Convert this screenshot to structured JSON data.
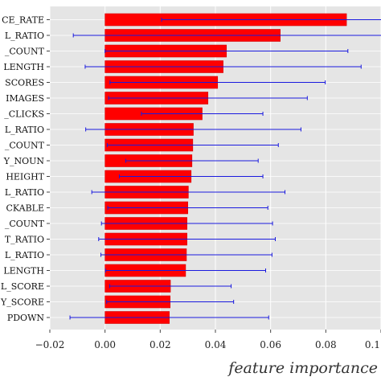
{
  "chart_data": {
    "type": "bar",
    "orientation": "horizontal",
    "categories": [
      "CE_RATE",
      "L_RATIO",
      "_COUNT",
      "LENGTH",
      "SCORES",
      "IMAGES",
      "_CLICKS",
      "L_RATIO",
      "_COUNT",
      "Y_NOUN",
      "HEIGHT",
      "L_RATIO",
      "CKABLE",
      "_COUNT",
      "T_RATIO",
      "L_RATIO",
      "LENGTH",
      "L_SCORE",
      "Y_SCORE",
      "PDOWN"
    ],
    "values": [
      0.0875,
      0.0635,
      0.044,
      0.0428,
      0.0408,
      0.0373,
      0.0352,
      0.032,
      0.0318,
      0.0315,
      0.0312,
      0.0302,
      0.03,
      0.0297,
      0.0297,
      0.0295,
      0.0292,
      0.0237,
      0.0236,
      0.0233
    ],
    "errors": [
      0.067,
      0.075,
      0.044,
      0.05,
      0.039,
      0.036,
      0.022,
      0.039,
      0.031,
      0.024,
      0.026,
      0.035,
      0.029,
      0.031,
      0.032,
      0.031,
      0.029,
      0.022,
      0.023,
      0.036
    ],
    "xlabel": "feature importance",
    "xticks": [
      "−0.02",
      "0.00",
      "0.02",
      "0.04",
      "0.06",
      "0.08",
      "0.1"
    ],
    "xlim": [
      -0.02,
      0.1
    ],
    "grid": true,
    "colors": {
      "bar": "#ff0000",
      "bar_edge": "#d40000",
      "error": "#1a1adf",
      "background": "#e5e5e5",
      "grid": "#ffffff"
    }
  }
}
